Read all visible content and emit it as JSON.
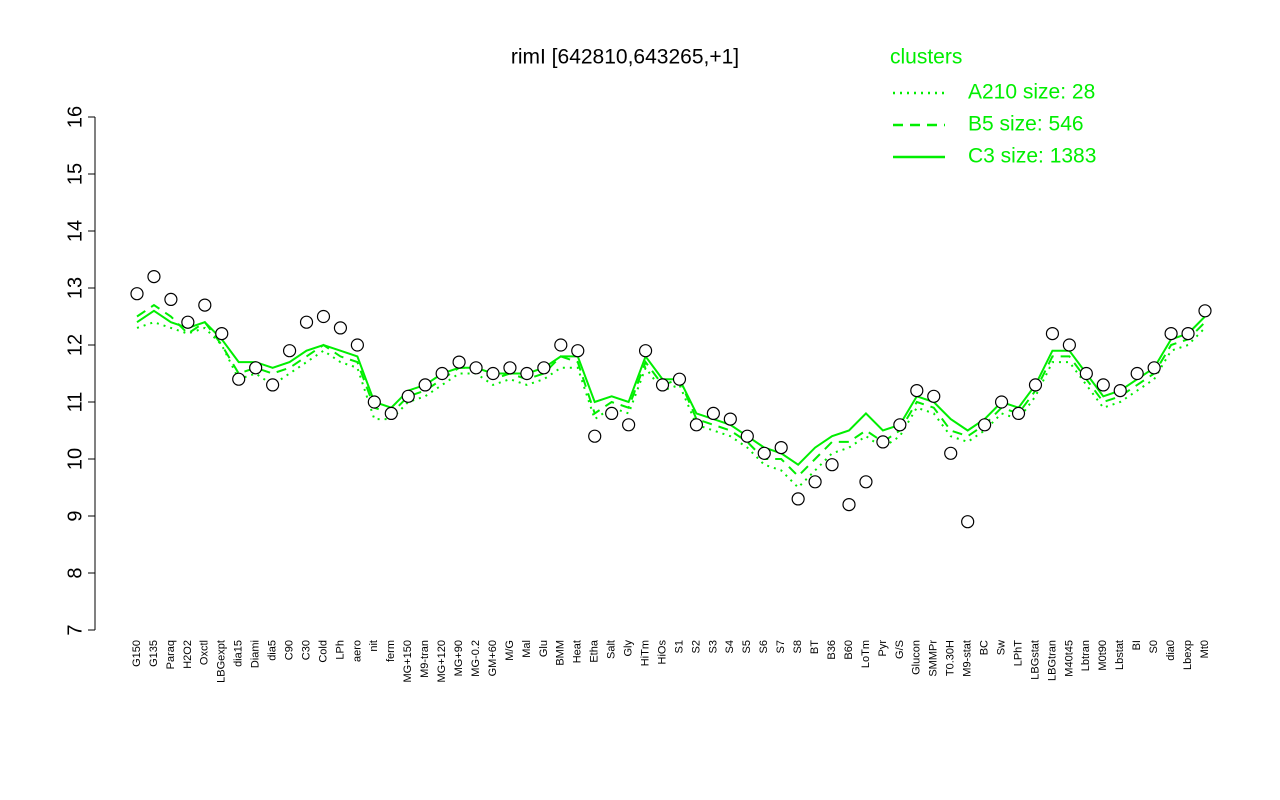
{
  "chart_data": {
    "type": "line",
    "title": "rimI [642810,643265,+1]",
    "legend_title": "clusters",
    "legend_position": "top-right",
    "categories": [
      "G150",
      "G135",
      "Paraq",
      "H2O2",
      "Oxctl",
      "LBGexpt",
      "dia15",
      "Diami",
      "dia5",
      "C90",
      "C30",
      "Cold",
      "LPh",
      "aero",
      "nit",
      "ferm",
      "MG+150",
      "M9-tran",
      "MG+120",
      "MG+90",
      "MG-0.2",
      "GM+60",
      "M/G",
      "Mal",
      "Glu",
      "BMM",
      "Heat",
      "Etha",
      "Salt",
      "Gly",
      "HiTm",
      "HiOs",
      "S1",
      "S2",
      "S3",
      "S4",
      "S5",
      "S6",
      "S7",
      "S8",
      "BT",
      "B36",
      "B60",
      "LoTm",
      "Pyr",
      "G/S",
      "Glucon",
      "SMMPr",
      "T0.30H",
      "M9-stat",
      "BC",
      "Sw",
      "LPhT",
      "LBGstat",
      "LBGtran",
      "M40t45",
      "Lbtran",
      "M0t90",
      "Lbstat",
      "BI",
      "S0",
      "dia0",
      "Lbexp",
      "Mt0"
    ],
    "values": [
      12.9,
      13.2,
      12.8,
      12.4,
      12.7,
      12.2,
      11.4,
      11.6,
      11.3,
      11.9,
      12.4,
      12.5,
      12.3,
      12.0,
      11.0,
      10.8,
      11.1,
      11.3,
      11.5,
      11.7,
      11.6,
      11.5,
      11.6,
      11.5,
      11.6,
      12.0,
      11.9,
      10.4,
      10.8,
      10.6,
      11.9,
      11.3,
      11.4,
      10.6,
      10.8,
      10.7,
      10.4,
      10.1,
      10.2,
      9.3,
      9.6,
      9.9,
      9.2,
      9.6,
      10.3,
      10.6,
      11.2,
      11.1,
      10.1,
      8.9,
      10.6,
      11.0,
      10.8,
      11.3,
      12.2,
      12.0,
      11.5,
      11.3,
      11.2,
      11.5,
      11.6,
      12.2,
      12.2,
      12.6
    ],
    "point_color": "#ffffff",
    "series": [
      {
        "name": "A210 size: 28",
        "color": "#00ee00",
        "style": "dotted",
        "values": [
          12.3,
          12.4,
          12.3,
          12.2,
          12.3,
          12.0,
          11.4,
          11.5,
          11.3,
          11.5,
          11.7,
          11.9,
          11.7,
          11.6,
          10.7,
          10.7,
          11.0,
          11.1,
          11.3,
          11.5,
          11.5,
          11.3,
          11.4,
          11.3,
          11.4,
          11.6,
          11.6,
          10.7,
          10.9,
          10.8,
          11.6,
          11.2,
          11.3,
          10.6,
          10.5,
          10.4,
          10.2,
          9.9,
          9.8,
          9.5,
          9.8,
          10.1,
          10.2,
          10.4,
          10.2,
          10.4,
          10.9,
          10.8,
          10.4,
          10.3,
          10.5,
          10.8,
          10.7,
          11.1,
          11.7,
          11.7,
          11.3,
          10.9,
          11.0,
          11.2,
          11.4,
          11.9,
          12.0,
          12.3
        ]
      },
      {
        "name": "B5 size: 546",
        "color": "#00ee00",
        "style": "dashed",
        "values": [
          12.5,
          12.7,
          12.5,
          12.2,
          12.4,
          12.0,
          11.5,
          11.6,
          11.5,
          11.6,
          11.8,
          12.0,
          11.8,
          11.7,
          10.9,
          10.8,
          11.1,
          11.2,
          11.4,
          11.6,
          11.6,
          11.4,
          11.5,
          11.4,
          11.5,
          11.8,
          11.7,
          10.8,
          11.0,
          10.9,
          11.7,
          11.3,
          11.4,
          10.7,
          10.6,
          10.5,
          10.3,
          10.0,
          10.0,
          9.7,
          10.0,
          10.3,
          10.3,
          10.5,
          10.3,
          10.5,
          11.0,
          10.9,
          10.5,
          10.4,
          10.6,
          10.9,
          10.8,
          11.2,
          11.8,
          11.8,
          11.4,
          11.0,
          11.1,
          11.3,
          11.5,
          12.0,
          12.1,
          12.4
        ]
      },
      {
        "name": "C3 size: 1383",
        "color": "#00ee00",
        "style": "solid",
        "values": [
          12.4,
          12.6,
          12.4,
          12.3,
          12.4,
          12.1,
          11.7,
          11.7,
          11.6,
          11.7,
          11.9,
          12.0,
          11.9,
          11.8,
          11.0,
          10.9,
          11.2,
          11.3,
          11.5,
          11.6,
          11.6,
          11.5,
          11.5,
          11.5,
          11.6,
          11.8,
          11.8,
          11.0,
          11.1,
          11.0,
          11.8,
          11.4,
          11.4,
          10.8,
          10.7,
          10.6,
          10.4,
          10.2,
          10.1,
          9.9,
          10.2,
          10.4,
          10.5,
          10.8,
          10.5,
          10.6,
          11.1,
          11.0,
          10.7,
          10.5,
          10.7,
          11.0,
          10.9,
          11.3,
          11.9,
          11.9,
          11.5,
          11.1,
          11.2,
          11.4,
          11.6,
          12.1,
          12.2,
          12.5
        ]
      }
    ],
    "ylim": [
      7,
      16
    ],
    "yticks": [
      7,
      8,
      9,
      10,
      11,
      12,
      13,
      14,
      15,
      16
    ],
    "grid": false
  }
}
